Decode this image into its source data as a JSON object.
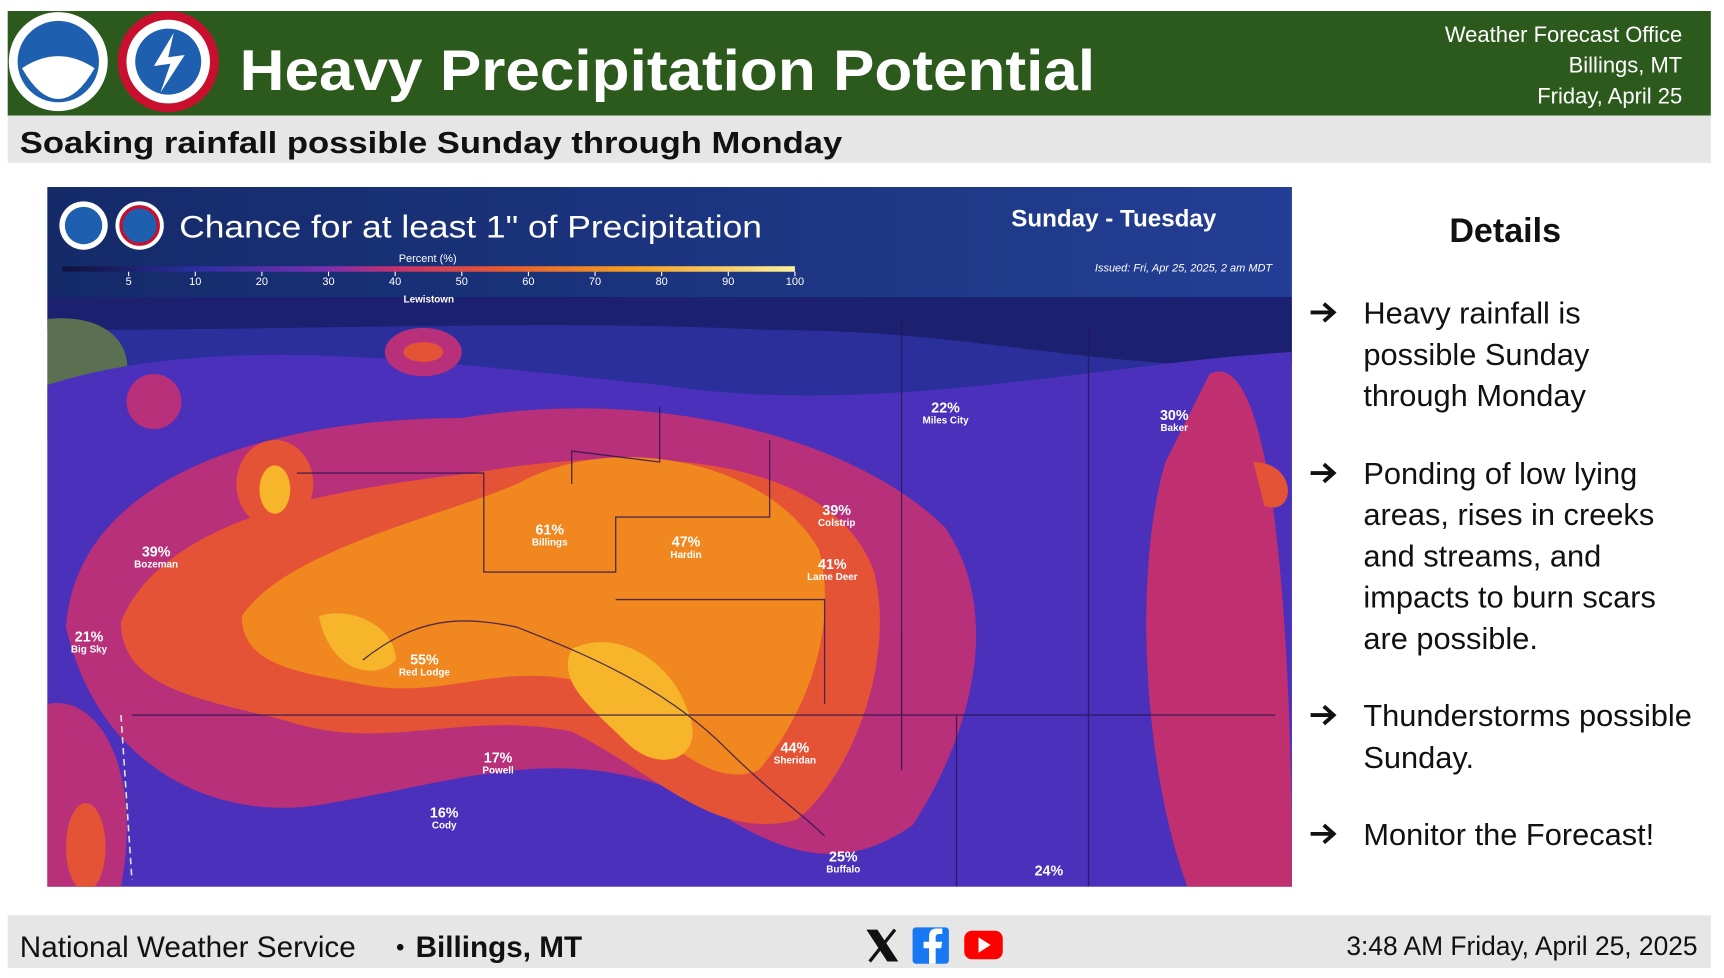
{
  "header": {
    "title": "Heavy Precipitation Potential",
    "office": [
      "Weather Forecast Office",
      "Billings, MT",
      "Friday, April 25"
    ],
    "subtitle": "Soaking rainfall possible Sunday through Monday"
  },
  "map": {
    "title": "Chance for at least 1\" of Precipitation",
    "period": "Sunday - Tuesday",
    "legend_label": "Percent (%)",
    "legend_ticks": [
      5,
      10,
      20,
      30,
      40,
      50,
      60,
      70,
      80,
      90,
      100
    ],
    "issued": "Issued: Fri, Apr 25, 2025, 2 am MDT",
    "places": [
      {
        "name": "Lewistown"
      },
      {
        "name": "Miles City",
        "value": "22%"
      },
      {
        "name": "Baker",
        "value": "30%"
      },
      {
        "name": "Bozeman",
        "value": "39%"
      },
      {
        "name": "Big Sky",
        "value": "21%"
      },
      {
        "name": "Billings",
        "value": "61%"
      },
      {
        "name": "Hardin",
        "value": "47%"
      },
      {
        "name": "Colstrip",
        "value": "39%"
      },
      {
        "name": "Lame Deer",
        "value": "41%"
      },
      {
        "name": "Red Lodge",
        "value": "55%"
      },
      {
        "name": "Powell",
        "value": "17%"
      },
      {
        "name": "Cody",
        "value": "16%"
      },
      {
        "name": "Sheridan",
        "value": "44%"
      },
      {
        "name": "Buffalo",
        "value": "25%"
      },
      {
        "value": "24%"
      }
    ]
  },
  "details": {
    "heading": "Details",
    "items": [
      "Heavy rainfall is possible Sunday through Monday",
      "Ponding of low lying areas, rises in creeks and streams, and impacts to burn scars are possible.",
      "Thunderstorms possible Sunday.",
      "Monitor the Forecast!"
    ]
  },
  "footer": {
    "organization": "National Weather Service",
    "location": "Billings, MT",
    "timestamp": "3:48 AM Friday, April 25, 2025"
  }
}
